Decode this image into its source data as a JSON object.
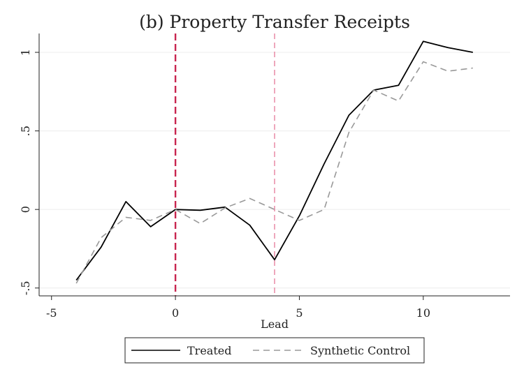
{
  "chart_data": {
    "type": "line",
    "title": "(b) Property Transfer Receipts",
    "xlabel": "Lead",
    "ylabel": "",
    "xlim": [
      -5.5,
      13.5
    ],
    "ylim": [
      -0.55,
      1.12
    ],
    "x_ticks": [
      -5,
      0,
      5,
      10
    ],
    "x_tick_labels": [
      "-5",
      "0",
      "5",
      "10"
    ],
    "y_ticks": [
      -0.5,
      0,
      0.5,
      1
    ],
    "y_tick_labels": [
      "-.5",
      "0",
      ".5",
      "1"
    ],
    "grid": true,
    "legend_position": "bottom",
    "vlines": [
      {
        "x": 0,
        "color": "#c8254f",
        "style": "dashed",
        "emphasis": "strong"
      },
      {
        "x": 4,
        "color": "#e88aa6",
        "style": "dashed",
        "emphasis": "light"
      }
    ],
    "series": [
      {
        "name": "Treated",
        "color": "#000000",
        "style": "solid",
        "x": [
          -4,
          -3,
          -2,
          -1,
          0,
          1,
          2,
          3,
          4,
          5,
          6,
          7,
          8,
          9,
          10,
          11,
          12
        ],
        "y": [
          -0.45,
          -0.24,
          0.05,
          -0.11,
          0.0,
          -0.005,
          0.015,
          -0.1,
          -0.32,
          -0.04,
          0.29,
          0.6,
          0.76,
          0.79,
          1.07,
          1.03,
          1.0
        ]
      },
      {
        "name": "Synthetic Control",
        "color": "#999999",
        "style": "dashed",
        "x": [
          -4,
          -3,
          -2,
          -1,
          0,
          1,
          2,
          3,
          4,
          5,
          6,
          7,
          8,
          9,
          10,
          11,
          12
        ],
        "y": [
          -0.47,
          -0.18,
          -0.05,
          -0.07,
          0.0,
          -0.09,
          0.01,
          0.07,
          0.0,
          -0.07,
          0.0,
          0.49,
          0.76,
          0.69,
          0.94,
          0.88,
          0.9
        ]
      }
    ]
  }
}
